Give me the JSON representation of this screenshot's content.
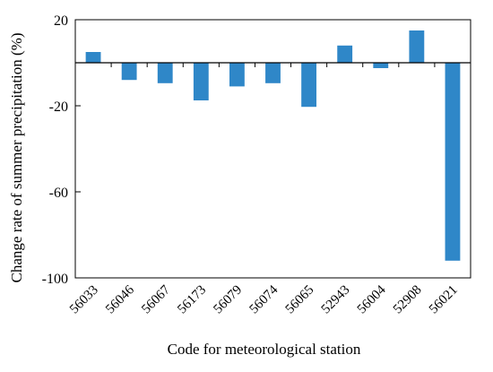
{
  "chart_data": {
    "type": "bar",
    "title": "",
    "xlabel": "Code for meteorological station",
    "ylabel": "Change rate of summer precipitation (%)",
    "categories": [
      "56033",
      "56046",
      "56067",
      "56173",
      "56079",
      "56074",
      "56065",
      "52943",
      "56004",
      "52908",
      "56021"
    ],
    "series": [
      {
        "values": [
          5,
          -8,
          -9.5,
          -17.5,
          -11,
          -9.5,
          -20.5,
          8,
          -2.5,
          15,
          -92
        ]
      }
    ],
    "yticks": [
      20,
      -20,
      -60,
      -100
    ],
    "ylim": [
      -100,
      20
    ],
    "grid": false,
    "legend": "none",
    "bar_color": "#2f87c8",
    "axis_color": "#000000"
  }
}
